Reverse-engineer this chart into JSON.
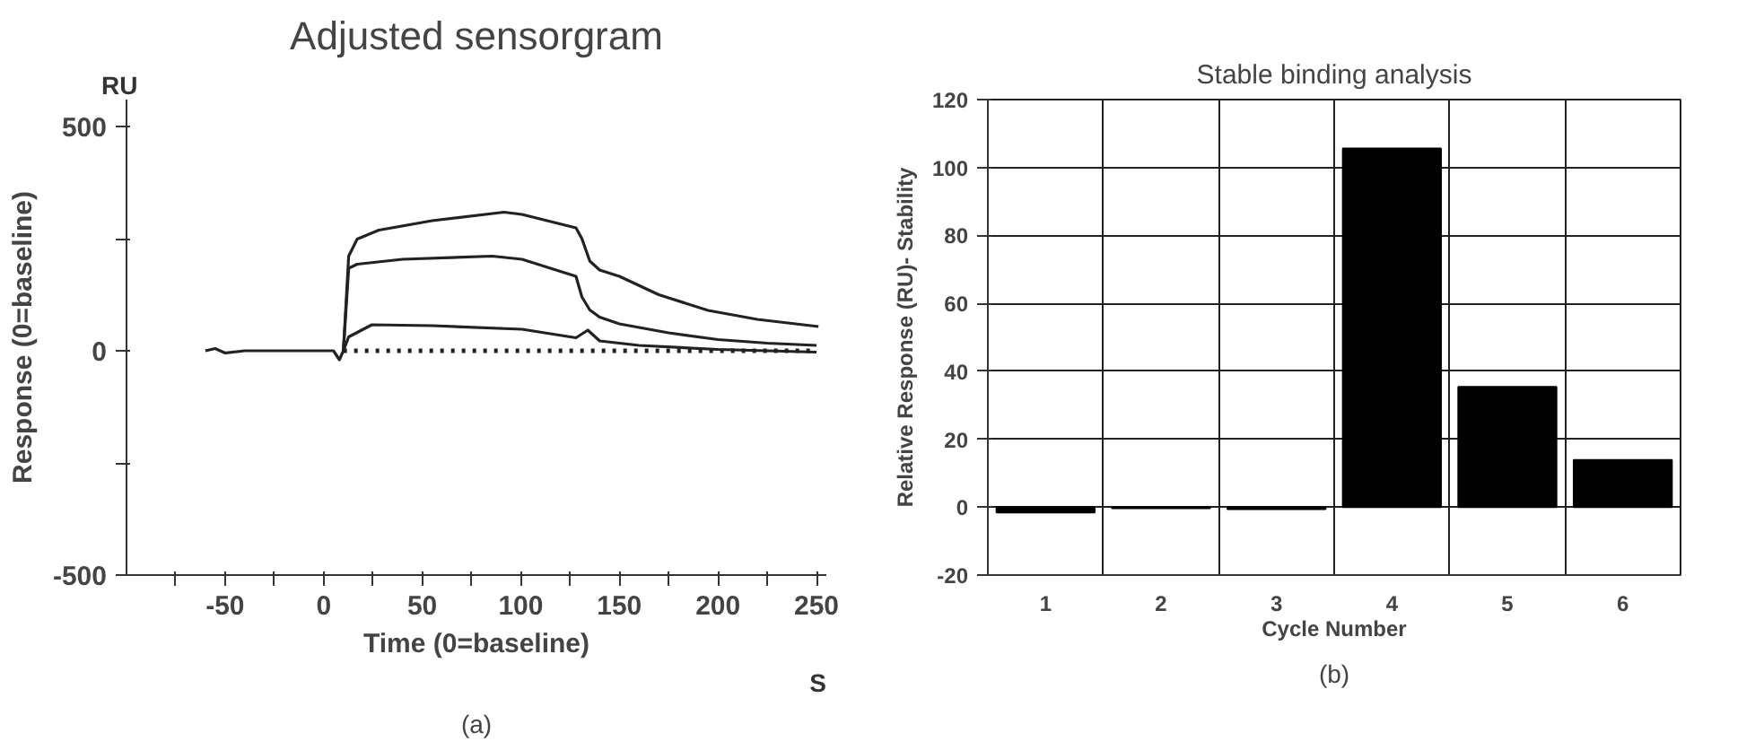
{
  "chart_data": [
    {
      "type": "line",
      "title": "Adjusted sensorgram",
      "xlabel": "Time (0=baseline)",
      "ylabel": "Response (0=baseline)",
      "annotations": [
        "RU",
        "S",
        "(a)"
      ],
      "xlim": [
        -100,
        255
      ],
      "ylim": [
        -500,
        560
      ],
      "xticks": [
        {
          "value": -75,
          "label": null
        },
        -50,
        {
          "value": -25,
          "label": null
        },
        0,
        {
          "value": 25,
          "label": null
        },
        50,
        {
          "value": 75,
          "label": null
        },
        100,
        {
          "value": 125,
          "label": null
        },
        150,
        {
          "value": 175,
          "label": null
        },
        200,
        {
          "value": 225,
          "label": null
        },
        250
      ],
      "yticks": [
        -500,
        {
          "value": -250,
          "label": null
        },
        0,
        {
          "value": 250,
          "label": null
        },
        500
      ],
      "line_style": "solid",
      "series": [
        {
          "color": "#222222",
          "x": [
            -60,
            -55,
            -50,
            -40,
            -20,
            5,
            8,
            10,
            12.7,
            17,
            28,
            55,
            91.5,
            100.6,
            128,
            131,
            135,
            140,
            150,
            170,
            195,
            220,
            251
          ],
          "values": [
            0,
            5,
            -5,
            0,
            0,
            0,
            -20,
            0,
            211,
            249,
            269,
            290,
            309,
            304,
            274,
            250,
            200,
            180,
            166,
            125,
            90,
            70,
            54
          ]
        },
        {
          "color": "#222222",
          "x": [
            10,
            12.7,
            17,
            40,
            85.5,
            100.6,
            128,
            131,
            135,
            140,
            150,
            175,
            200,
            225,
            250
          ],
          "values": [
            0,
            184,
            193,
            204,
            211,
            204,
            166,
            120,
            91,
            75,
            60,
            40,
            25,
            17,
            12
          ]
        },
        {
          "color": "#222222",
          "x": [
            10,
            12.7,
            24.5,
            55,
            100.6,
            128,
            134,
            140,
            160,
            200,
            250
          ],
          "values": [
            0,
            31,
            58,
            56,
            48,
            29,
            46,
            22,
            12,
            3,
            -3
          ]
        },
        {
          "color": "#222222",
          "line_style": "dotted",
          "x": [
            10,
            130,
            250
          ],
          "values": [
            0,
            0,
            0
          ]
        }
      ]
    },
    {
      "type": "bar",
      "title": "Stable binding analysis",
      "xlabel": "Cycle Number",
      "ylabel": "Relative Response (RU)- Stability",
      "annotations": [
        "(b)"
      ],
      "categories": [
        "1",
        "2",
        "3",
        "4",
        "5",
        "6"
      ],
      "values": [
        -1.6,
        -0.3,
        -0.6,
        105.6,
        35.4,
        13.9
      ],
      "color": "#000000",
      "ylim": [
        -20,
        120
      ],
      "yticks": [
        -20,
        0,
        20,
        40,
        60,
        80,
        100,
        120
      ],
      "grid": true
    }
  ]
}
